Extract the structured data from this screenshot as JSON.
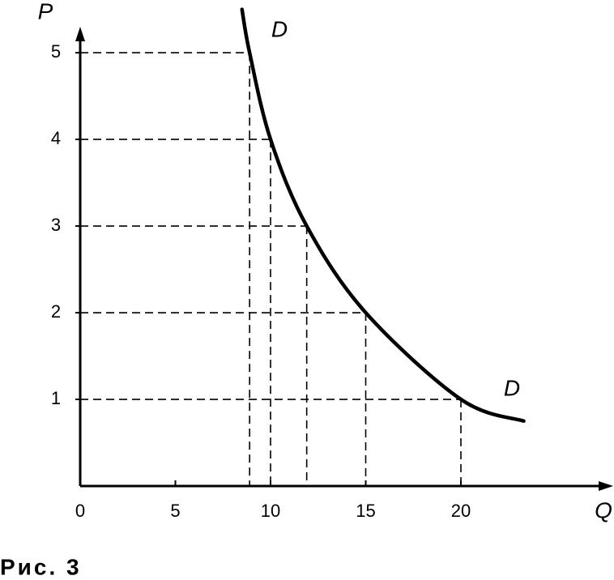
{
  "chart_data": {
    "type": "line",
    "x_label": "Q",
    "y_label": "P",
    "annotations": [
      "D",
      "D"
    ],
    "caption": "Рис. 3",
    "series": [
      {
        "name": "D",
        "color": "#000000",
        "x": [
          8.5,
          8.9,
          10,
          11.9,
          15,
          20,
          23.3
        ],
        "values": [
          5.5,
          5,
          4,
          3,
          2,
          1,
          0.75
        ]
      }
    ],
    "xlim": [
      0,
      28
    ],
    "ylim": [
      0,
      5.3
    ],
    "xticks": [
      0,
      5,
      10,
      15,
      20
    ],
    "yticks": [
      1,
      2,
      3,
      4,
      5
    ],
    "guides": true
  }
}
